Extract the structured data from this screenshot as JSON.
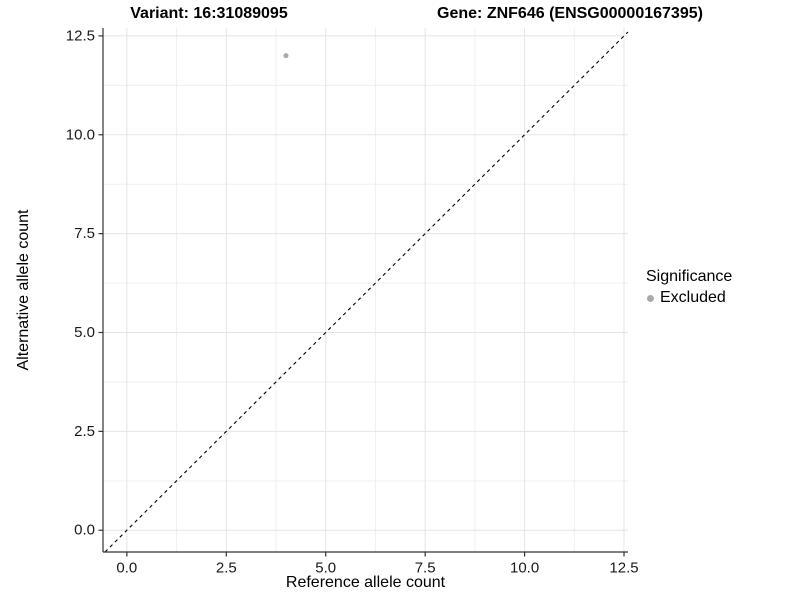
{
  "chart_data": {
    "type": "scatter",
    "title_left": "Variant: 16:31089095",
    "title_right": "Gene: ZNF646 (ENSG00000167395)",
    "xlabel": "Reference allele count",
    "ylabel": "Alternative allele count",
    "xlim": [
      -0.6,
      12.6
    ],
    "ylim": [
      -0.55,
      12.7
    ],
    "x_tick_values": [
      0,
      2.5,
      5,
      7.5,
      10,
      12.5
    ],
    "x_tick_labels": [
      "0.0",
      "2.5",
      "5.0",
      "7.5",
      "10.0",
      "12.5"
    ],
    "y_tick_values": [
      0,
      2.5,
      5,
      7.5,
      10,
      12.5
    ],
    "y_tick_labels": [
      "0.0",
      "2.5",
      "5.0",
      "7.5",
      "10.0",
      "12.5"
    ],
    "x_minor_values": [
      1.25,
      3.75,
      6.25,
      8.75,
      11.25
    ],
    "y_minor_values": [
      1.25,
      3.75,
      6.25,
      8.75,
      11.25
    ],
    "grid": true,
    "legend_title": "Significance",
    "legend_position": "right",
    "series": [
      {
        "name": "Excluded",
        "color": "#a9a9a9",
        "points": [
          {
            "x": 4,
            "y": 12
          }
        ]
      }
    ],
    "reference_line": {
      "type": "identity",
      "slope": 1,
      "intercept": 0,
      "style": "dashed",
      "color": "#000000"
    }
  },
  "colors": {
    "background": "#ffffff",
    "grid_major": "#e5e5e5",
    "grid_minor": "#efefef",
    "axis_line": "#333333",
    "tick_mark": "#333333",
    "tick_label": "#1a1a1a",
    "point": "#a9a9a9",
    "reference_line": "#000000"
  }
}
